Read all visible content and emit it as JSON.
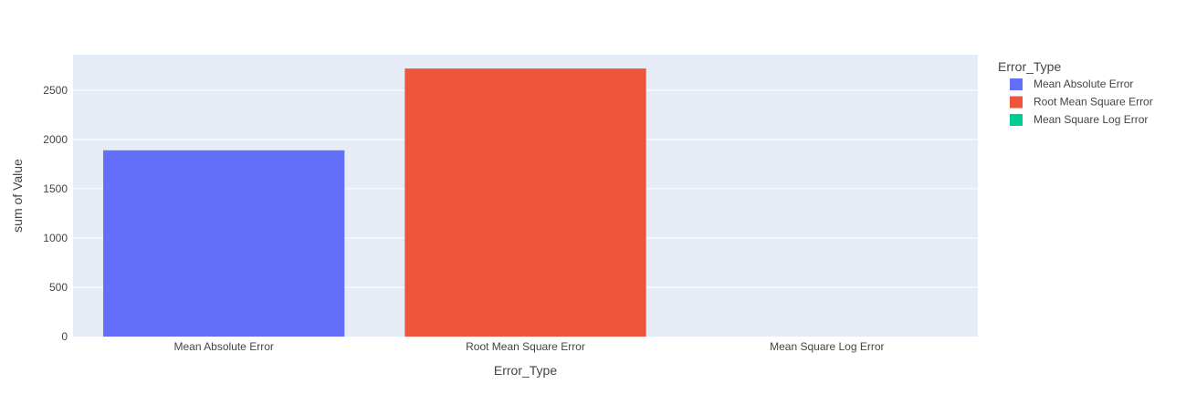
{
  "chart_data": {
    "type": "bar",
    "categories": [
      "Mean Absolute Error",
      "Root Mean Square Error",
      "Mean Square Log Error"
    ],
    "values": [
      1890,
      2720,
      0.05
    ],
    "colors": [
      "#636efa",
      "#ef553b",
      "#00cc96"
    ],
    "xlabel": "Error_Type",
    "ylabel": "sum of Value",
    "ylim": [
      0,
      2860
    ],
    "yticks": [
      0,
      500,
      1000,
      1500,
      2000,
      2500
    ],
    "grid": true,
    "plot_background": "#e5ecf6",
    "legend": {
      "title": "Error_Type",
      "placement": "right",
      "entries": [
        "Mean Absolute Error",
        "Root Mean Square Error",
        "Mean Square Log Error"
      ]
    }
  }
}
